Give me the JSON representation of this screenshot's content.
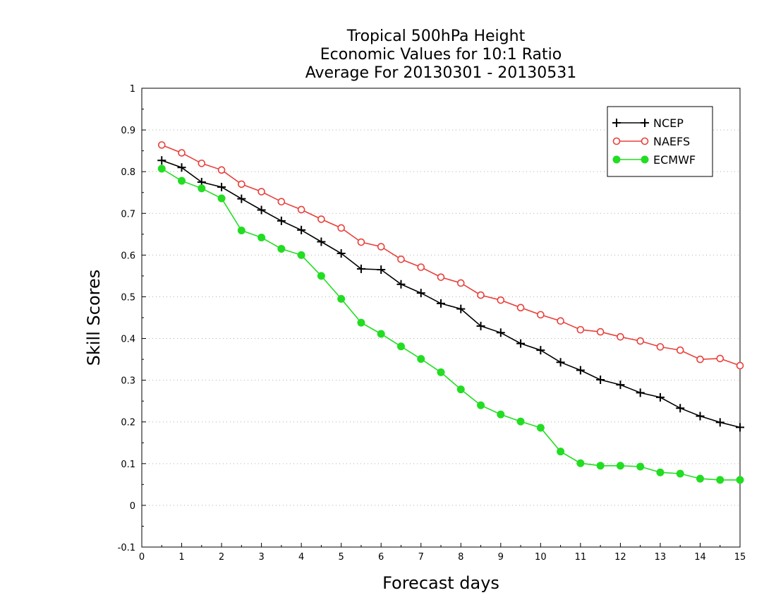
{
  "chart_data": {
    "type": "line",
    "title_lines": [
      "Tropical 500hPa Height",
      "Economic Values for 10:1 Ratio",
      "Average For 20130301 - 20130531"
    ],
    "xlabel": "Forecast days",
    "ylabel": "Skill Scores",
    "xlim": [
      0,
      15
    ],
    "ylim": [
      -0.1,
      1
    ],
    "x_ticks": [
      0,
      1,
      2,
      3,
      4,
      5,
      6,
      7,
      8,
      9,
      10,
      11,
      12,
      13,
      14,
      15
    ],
    "x_tick_labels": [
      "0",
      "1",
      "2",
      "3",
      "4",
      "5",
      "6",
      "7",
      "8",
      "9",
      "10",
      "11",
      "12",
      "13",
      "14",
      "15"
    ],
    "y_ticks": [
      -0.1,
      0,
      0.1,
      0.2,
      0.3,
      0.4,
      0.5,
      0.6,
      0.7,
      0.8,
      0.9,
      1
    ],
    "y_tick_labels": [
      "-0.1",
      "0",
      "0.1",
      "0.2",
      "0.3",
      "0.4",
      "0.5",
      "0.6",
      "0.7",
      "0.8",
      "0.9",
      "1"
    ],
    "grid": "horizontal-dotted",
    "legend_position": "top-right",
    "x": [
      0.5,
      1,
      1.5,
      2,
      2.5,
      3,
      3.5,
      4,
      4.5,
      5,
      5.5,
      6,
      6.5,
      7,
      7.5,
      8,
      8.5,
      9,
      9.5,
      10,
      10.5,
      11,
      11.5,
      12,
      12.5,
      13,
      13.5,
      14,
      14.5,
      15
    ],
    "series": [
      {
        "name": "NCEP",
        "color": "#000000",
        "marker": "plus",
        "values": [
          0.827,
          0.81,
          0.775,
          0.763,
          0.735,
          0.708,
          0.682,
          0.66,
          0.632,
          0.604,
          0.567,
          0.565,
          0.53,
          0.509,
          0.484,
          0.471,
          0.43,
          0.414,
          0.388,
          0.372,
          0.343,
          0.324,
          0.301,
          0.289,
          0.27,
          0.259,
          0.233,
          0.214,
          0.199,
          0.187
        ]
      },
      {
        "name": "NAEFS",
        "color": "#e8403a",
        "marker": "open-circle",
        "values": [
          0.864,
          0.845,
          0.82,
          0.804,
          0.77,
          0.752,
          0.728,
          0.709,
          0.686,
          0.665,
          0.631,
          0.62,
          0.59,
          0.571,
          0.547,
          0.533,
          0.504,
          0.492,
          0.474,
          0.457,
          0.442,
          0.421,
          0.416,
          0.404,
          0.394,
          0.38,
          0.372,
          0.35,
          0.352,
          0.335
        ]
      },
      {
        "name": "ECMWF",
        "color": "#22dd22",
        "marker": "filled-circle",
        "values": [
          0.807,
          0.778,
          0.76,
          0.736,
          0.659,
          0.642,
          0.615,
          0.6,
          0.55,
          0.495,
          0.438,
          0.411,
          0.381,
          0.351,
          0.319,
          0.278,
          0.24,
          0.218,
          0.201,
          0.186,
          0.129,
          0.101,
          0.095,
          0.095,
          0.093,
          0.079,
          0.076,
          0.064,
          0.061,
          0.061
        ]
      }
    ]
  }
}
